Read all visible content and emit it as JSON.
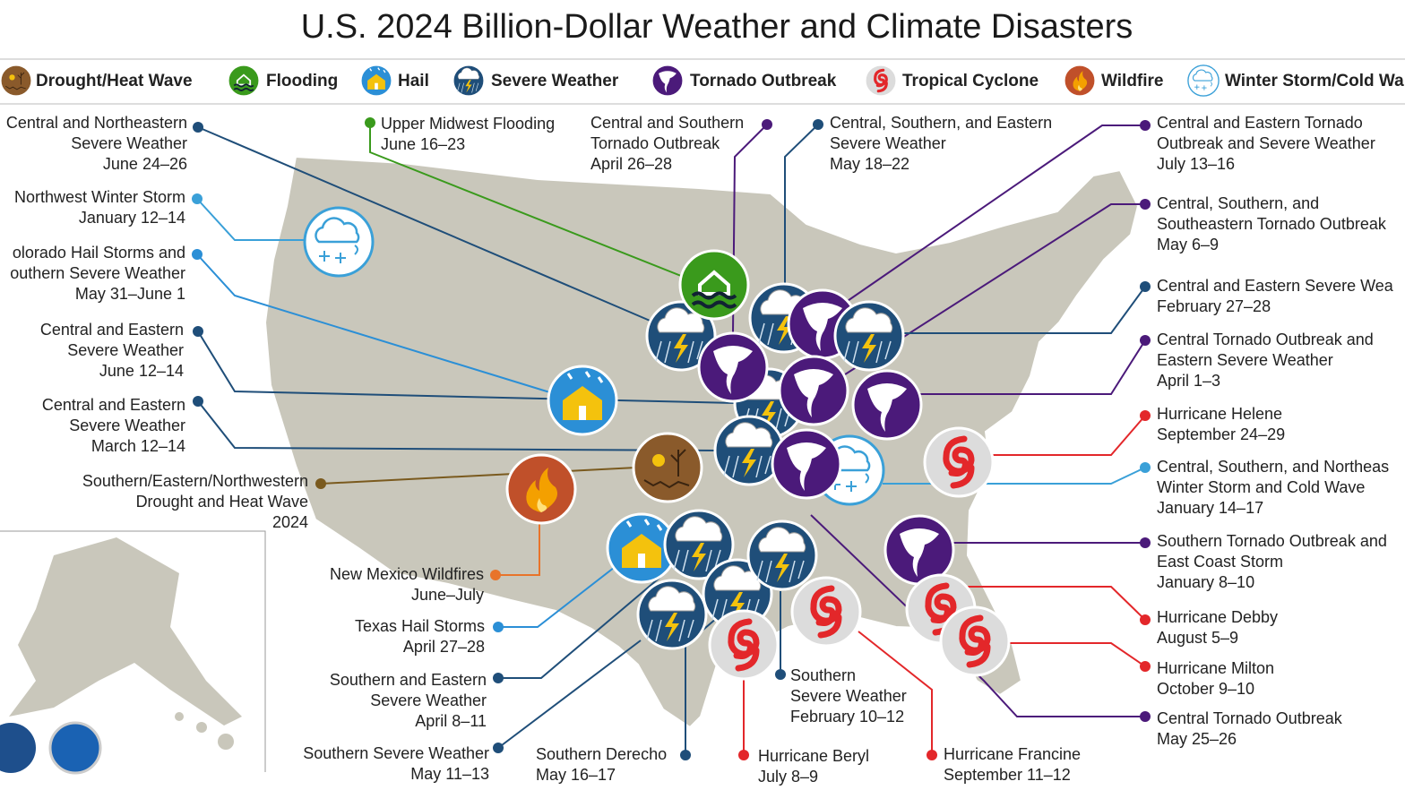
{
  "title": "U.S. 2024 Billion-Dollar Weather and Climate Disasters",
  "legend": [
    "Drought/Heat Wave",
    "Flooding",
    "Hail",
    "Severe Weather",
    "Tornado Outbreak",
    "Tropical Cyclone",
    "Wildfire",
    "Winter Storm/Cold Wa"
  ],
  "events": [
    {
      "lines": [
        "Central and Northeastern",
        "Severe Weather"
      ],
      "date": "June 24–26"
    },
    {
      "lines": [
        "Northwest Winter Storm"
      ],
      "date": "January 12–14"
    },
    {
      "lines": [
        "olorado Hail Storms and",
        "outhern Severe Weather"
      ],
      "date": "May 31–June 1"
    },
    {
      "lines": [
        "Central and Eastern",
        "Severe Weather"
      ],
      "date": "June 12–14"
    },
    {
      "lines": [
        "Central and Eastern",
        "Severe Weather"
      ],
      "date": "March 12–14"
    },
    {
      "lines": [
        "Southern/Eastern/Northwestern",
        "Drought and Heat Wave"
      ],
      "date": "2024"
    },
    {
      "lines": [
        "New Mexico Wildfires"
      ],
      "date": "June–July"
    },
    {
      "lines": [
        "Texas Hail Storms"
      ],
      "date": "April 27–28"
    },
    {
      "lines": [
        "Southern and Eastern",
        "Severe Weather"
      ],
      "date": "April 8–11"
    },
    {
      "lines": [
        "Southern Severe Weather"
      ],
      "date": "May 11–13"
    },
    {
      "lines": [
        "Southern Derecho"
      ],
      "date": "May 16–17"
    },
    {
      "lines": [
        "Hurricane Beryl"
      ],
      "date": "July 8–9"
    },
    {
      "lines": [
        "Southern",
        "Severe Weather"
      ],
      "date": "February 10–12"
    },
    {
      "lines": [
        "Hurricane Francine"
      ],
      "date": "September 11–12"
    },
    {
      "lines": [
        "Upper Midwest Flooding"
      ],
      "date": "June 16–23"
    },
    {
      "lines": [
        "Central and Southern",
        "Tornado Outbreak"
      ],
      "date": "April 26–28"
    },
    {
      "lines": [
        "Central, Southern, and Eastern",
        "Severe Weather"
      ],
      "date": "May 18–22"
    },
    {
      "lines": [
        "Central and Eastern Tornado",
        "Outbreak and Severe Weather"
      ],
      "date": "July 13–16"
    },
    {
      "lines": [
        "Central, Southern, and",
        "Southeastern Tornado Outbreak"
      ],
      "date": "May 6–9"
    },
    {
      "lines": [
        "Central and Eastern Severe Wea"
      ],
      "date": "February 27–28"
    },
    {
      "lines": [
        "Central Tornado Outbreak and",
        "Eastern Severe Weather"
      ],
      "date": "April 1–3"
    },
    {
      "lines": [
        "Hurricane Helene"
      ],
      "date": "September 24–29"
    },
    {
      "lines": [
        "Central, Southern, and Northeas",
        "Winter Storm and Cold Wave"
      ],
      "date": "January 14–17"
    },
    {
      "lines": [
        "Southern Tornado Outbreak and",
        "East Coast Storm"
      ],
      "date": "January 8–10"
    },
    {
      "lines": [
        "Hurricane Debby"
      ],
      "date": "August 5–9"
    },
    {
      "lines": [
        "Hurricane Milton"
      ],
      "date": "October 9–10"
    },
    {
      "lines": [
        "Central Tornado Outbreak"
      ],
      "date": "May 25–26"
    }
  ]
}
